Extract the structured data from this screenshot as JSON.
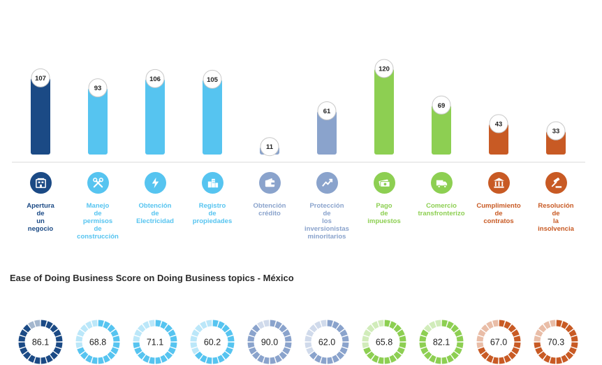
{
  "colors": {
    "navy": "#1b4a85",
    "sky": "#56c4f0",
    "steel": "#8aa3cc",
    "green": "#8dcf52",
    "orange": "#c85a24"
  },
  "topics": [
    {
      "label": "Apertura\nde\nun\nnegocio",
      "icon": "building-icon",
      "color": "#1b4a85"
    },
    {
      "label": "Manejo\nde\npermisos\nde\nconstrucción",
      "icon": "tools-icon",
      "color": "#56c4f0"
    },
    {
      "label": "Obtención\nde\nElectricidad",
      "icon": "lightning-icon",
      "color": "#56c4f0"
    },
    {
      "label": "Registro\nde\npropiedades",
      "icon": "city-icon",
      "color": "#56c4f0"
    },
    {
      "label": "Obtención\ncrédito",
      "icon": "wallet-icon",
      "color": "#8aa3cc"
    },
    {
      "label": "Protección\nde\nlos\ninversionistas\nminoritarios",
      "icon": "trend-icon",
      "color": "#8aa3cc"
    },
    {
      "label": "Pago\nde\nimpuestos",
      "icon": "money-icon",
      "color": "#8dcf52"
    },
    {
      "label": "Comercio\ntransfronterizo",
      "icon": "truck-icon",
      "color": "#8dcf52"
    },
    {
      "label": "Cumplimiento\nde\ncontratos",
      "icon": "courthouse-icon",
      "color": "#c85a24"
    },
    {
      "label": "Resolución\nde\nla\ninsolvencia",
      "icon": "gavel-icon",
      "color": "#c85a24"
    }
  ],
  "score_title": "Ease of Doing Business Score on Doing Business topics - México",
  "chart_data": [
    {
      "type": "bar",
      "categories": [
        "Apertura de un negocio",
        "Manejo de permisos de construcción",
        "Obtención de Electricidad",
        "Registro de propiedades",
        "Obtención crédito",
        "Protección de los inversionistas minoritarios",
        "Pago de impuestos",
        "Comercio transfronterizo",
        "Cumplimiento de contratos",
        "Resolución de la insolvencia"
      ],
      "values": [
        107,
        93,
        106,
        105,
        11,
        61,
        120,
        69,
        43,
        33
      ],
      "data_labels": [
        "107",
        "93",
        "106",
        "105",
        "11",
        "61",
        "120",
        "69",
        "43",
        "33"
      ],
      "colors": [
        "#1b4a85",
        "#56c4f0",
        "#56c4f0",
        "#56c4f0",
        "#8aa3cc",
        "#8aa3cc",
        "#8dcf52",
        "#8dcf52",
        "#c85a24",
        "#c85a24"
      ],
      "title": "",
      "xlabel": "",
      "ylabel": "",
      "ylim": [
        0,
        200
      ],
      "grid": false,
      "legend": "none"
    },
    {
      "type": "pie",
      "subtype": "donut-gauge",
      "categories": [
        "Apertura de un negocio",
        "Manejo de permisos de construcción",
        "Obtención de Electricidad",
        "Registro de propiedades",
        "Obtención crédito",
        "Protección de los inversionistas minoritarios",
        "Pago de impuestos",
        "Comercio transfronterizo",
        "Cumplimiento de contratos",
        "Resolución de la insolvencia"
      ],
      "values": [
        86.1,
        68.8,
        71.1,
        60.2,
        90.0,
        62.0,
        65.8,
        82.1,
        67.0,
        70.3
      ],
      "data_labels": [
        "86.1",
        "68.8",
        "71.1",
        "60.2",
        "90.0",
        "62.0",
        "65.8",
        "82.1",
        "67.0",
        "70.3"
      ],
      "max": 100,
      "colors": [
        "#1b4a85",
        "#56c4f0",
        "#56c4f0",
        "#56c4f0",
        "#8aa3cc",
        "#8aa3cc",
        "#8dcf52",
        "#8dcf52",
        "#c85a24",
        "#c85a24"
      ],
      "title": "Ease of Doing Business Score on Doing Business topics - México"
    }
  ]
}
